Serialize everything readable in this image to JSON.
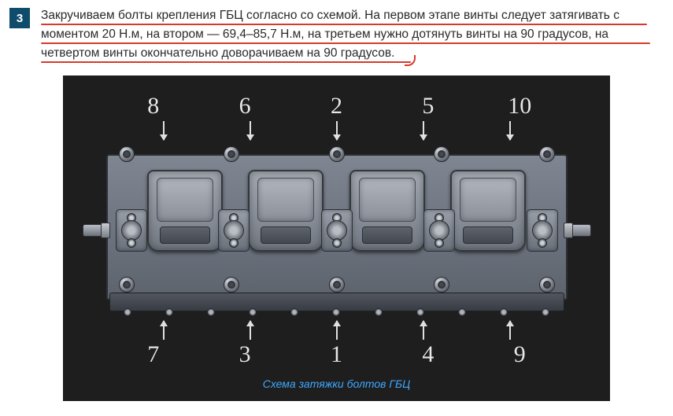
{
  "step": {
    "number": "3",
    "text": "Закручиваем болты крепления ГБЦ согласно со схемой. На первом этапе винты следует затягивать с моментом 20 Н.м, на втором — 69,4–85,7 Н.м, на третьем нужно дотянуть винты на 90 градусов, на четвертом винты окончательно доворачиваем на 90 градусов."
  },
  "caption": "Схема затяжки болтов ГБЦ",
  "diagram": {
    "type": "infographic",
    "background_color": "#1e1e1e",
    "label_color": "#e8e8e8",
    "label_font": "handwritten",
    "label_fontsize": 30,
    "arrow_color": "#e0e0e0",
    "head_body_color": "#6e7580",
    "chamber_color": "#9ba0a9",
    "bolt_count": 10,
    "top_labels": [
      "8",
      "6",
      "2",
      "5",
      "10"
    ],
    "bottom_labels": [
      "7",
      "3",
      "1",
      "4",
      "9"
    ],
    "underline_color": "#d63a2a",
    "caption_color": "#3fa8ff",
    "badge_bg": "#0f4c6b",
    "badge_fg": "#ffffff"
  }
}
